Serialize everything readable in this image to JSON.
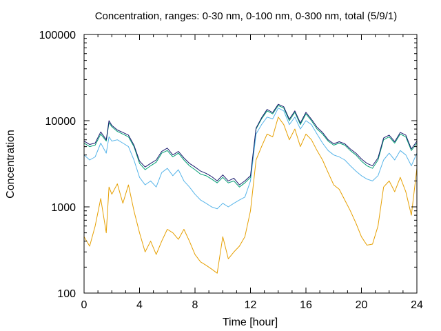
{
  "chart_data": {
    "type": "line",
    "title": "Concentration, ranges: 0-30 nm, 0-100 nm, 0-300 nm, total (5/9/1)",
    "xlabel": "Time [hour]",
    "ylabel": "Concentration",
    "xlim": [
      0,
      24
    ],
    "ylim": [
      100,
      100000
    ],
    "yscale": "log",
    "grid": false,
    "legend": "none",
    "x_ticks": [
      0,
      4,
      8,
      12,
      16,
      20,
      24
    ],
    "x_tick_labels": [
      "0",
      "4",
      "8",
      "12",
      "16",
      "20",
      "24"
    ],
    "y_ticks": [
      100,
      1000,
      10000,
      100000
    ],
    "y_tick_labels": [
      "100",
      "1000",
      "10000",
      "100000"
    ],
    "series": [
      {
        "color": "#e69f00",
        "x": [
          0,
          0.4,
          0.8,
          1.2,
          1.6,
          1.8,
          2.0,
          2.4,
          2.8,
          3.2,
          3.6,
          4.0,
          4.4,
          4.8,
          5.2,
          5.6,
          6.0,
          6.4,
          6.8,
          7.2,
          7.6,
          8.0,
          8.4,
          8.8,
          9.2,
          9.6,
          10.0,
          10.4,
          10.8,
          11.2,
          11.6,
          12.0,
          12.4,
          12.8,
          13.2,
          13.6,
          14.0,
          14.4,
          14.8,
          15.2,
          15.6,
          16.0,
          16.4,
          16.8,
          17.2,
          17.6,
          18.0,
          18.4,
          18.8,
          19.2,
          19.6,
          20.0,
          20.4,
          20.8,
          21.2,
          21.6,
          22.0,
          22.4,
          22.8,
          23.2,
          23.6,
          24.0
        ],
        "y": [
          450,
          350,
          600,
          1250,
          500,
          1700,
          1400,
          1850,
          1100,
          1800,
          900,
          500,
          300,
          400,
          280,
          400,
          550,
          500,
          420,
          550,
          400,
          280,
          230,
          210,
          190,
          170,
          450,
          250,
          300,
          350,
          450,
          900,
          3500,
          5000,
          7000,
          6500,
          11000,
          9000,
          6000,
          8000,
          5000,
          7000,
          6000,
          4500,
          3500,
          2500,
          1800,
          1600,
          1200,
          900,
          650,
          450,
          360,
          370,
          600,
          1700,
          2000,
          1500,
          2200,
          1500,
          800,
          2800
        ]
      },
      {
        "color": "#56b4e9",
        "x": [
          0,
          0.4,
          0.8,
          1.2,
          1.6,
          1.8,
          2.0,
          2.4,
          2.8,
          3.2,
          3.6,
          4.0,
          4.4,
          4.8,
          5.2,
          5.6,
          6.0,
          6.4,
          6.8,
          7.2,
          7.6,
          8.0,
          8.4,
          8.8,
          9.2,
          9.6,
          10.0,
          10.4,
          10.8,
          11.2,
          11.6,
          12.0,
          12.4,
          12.8,
          13.2,
          13.6,
          14.0,
          14.4,
          14.8,
          15.2,
          15.6,
          16.0,
          16.4,
          16.8,
          17.2,
          17.6,
          18.0,
          18.4,
          18.8,
          19.2,
          19.6,
          20.0,
          20.4,
          20.8,
          21.2,
          21.6,
          22.0,
          22.4,
          22.8,
          23.2,
          23.6,
          24.0
        ],
        "y": [
          4000,
          3500,
          3800,
          5500,
          4200,
          6500,
          5800,
          6000,
          5500,
          5000,
          3500,
          2200,
          1800,
          2000,
          1700,
          2500,
          2800,
          2300,
          2700,
          2000,
          1700,
          1400,
          1200,
          1100,
          1000,
          950,
          1100,
          1000,
          1100,
          1200,
          1300,
          2000,
          7000,
          9000,
          11000,
          10500,
          14000,
          13000,
          9000,
          11000,
          8000,
          10000,
          9000,
          7000,
          5500,
          4500,
          4000,
          3800,
          3500,
          3000,
          2600,
          2300,
          2100,
          2000,
          2300,
          3500,
          4200,
          3500,
          4500,
          4000,
          3000,
          4200
        ]
      },
      {
        "color": "#009e73",
        "x": [
          0,
          0.4,
          0.8,
          1.2,
          1.6,
          1.8,
          2.0,
          2.4,
          2.8,
          3.2,
          3.6,
          4.0,
          4.4,
          4.8,
          5.2,
          5.6,
          6.0,
          6.4,
          6.8,
          7.2,
          7.6,
          8.0,
          8.4,
          8.8,
          9.2,
          9.6,
          10.0,
          10.4,
          10.8,
          11.2,
          11.6,
          12.0,
          12.4,
          12.8,
          13.2,
          13.6,
          14.0,
          14.4,
          14.8,
          15.2,
          15.6,
          16.0,
          16.4,
          16.8,
          17.2,
          17.6,
          18.0,
          18.4,
          18.8,
          19.2,
          19.6,
          20.0,
          20.4,
          20.8,
          21.2,
          21.6,
          22.0,
          22.4,
          22.8,
          23.2,
          23.6,
          24.0
        ],
        "y": [
          5500,
          5000,
          5200,
          7000,
          5800,
          9500,
          8500,
          7500,
          7000,
          6500,
          5000,
          3200,
          2700,
          3000,
          3300,
          4200,
          4500,
          3800,
          4200,
          3500,
          3000,
          2700,
          2400,
          2300,
          2100,
          1900,
          2200,
          1900,
          2000,
          1700,
          1900,
          2200,
          8000,
          10500,
          13000,
          12000,
          15000,
          14000,
          10000,
          12500,
          9000,
          12000,
          10000,
          8000,
          7000,
          5800,
          5200,
          5500,
          5200,
          4500,
          4000,
          3400,
          3000,
          2800,
          3500,
          6000,
          6500,
          5500,
          7000,
          6500,
          4500,
          5500
        ]
      },
      {
        "color": "#1a1a6e",
        "x": [
          0,
          0.4,
          0.8,
          1.2,
          1.6,
          1.8,
          2.0,
          2.4,
          2.8,
          3.2,
          3.6,
          4.0,
          4.4,
          4.8,
          5.2,
          5.6,
          6.0,
          6.4,
          6.8,
          7.2,
          7.6,
          8.0,
          8.4,
          8.8,
          9.2,
          9.6,
          10.0,
          10.4,
          10.8,
          11.2,
          11.6,
          12.0,
          12.4,
          12.8,
          13.2,
          13.6,
          14.0,
          14.4,
          14.8,
          15.2,
          15.6,
          16.0,
          16.4,
          16.8,
          17.2,
          17.6,
          18.0,
          18.4,
          18.8,
          19.2,
          19.6,
          20.0,
          20.4,
          20.8,
          21.2,
          21.6,
          22.0,
          22.4,
          22.8,
          23.2,
          23.6,
          24.0
        ],
        "y": [
          5800,
          5300,
          5500,
          7400,
          6000,
          10000,
          8800,
          7800,
          7300,
          6800,
          5200,
          3400,
          2900,
          3200,
          3500,
          4400,
          4800,
          4000,
          4400,
          3700,
          3200,
          2900,
          2600,
          2450,
          2250,
          2000,
          2350,
          2000,
          2150,
          1800,
          2000,
          2300,
          8200,
          10800,
          13500,
          12400,
          15500,
          14500,
          10400,
          13000,
          9400,
          12500,
          10400,
          8400,
          7300,
          6000,
          5400,
          5700,
          5400,
          4700,
          4200,
          3600,
          3200,
          3000,
          3700,
          6300,
          6800,
          5700,
          7300,
          6800,
          4700,
          5800
        ]
      }
    ]
  }
}
